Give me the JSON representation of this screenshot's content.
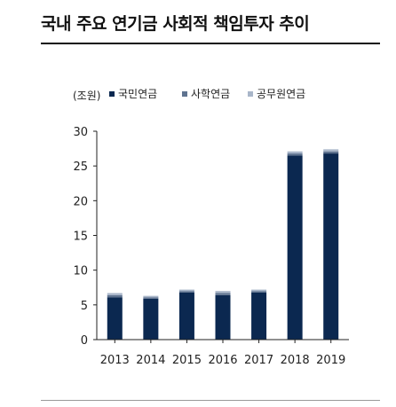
{
  "title": "국내 주요 연기금 사회적 책임투자 추이",
  "chart_data": {
    "type": "bar",
    "stacked": true,
    "unit_label": "(조원)",
    "categories": [
      "2013",
      "2014",
      "2015",
      "2016",
      "2017",
      "2018",
      "2019"
    ],
    "series": [
      {
        "name": "국민연금",
        "color": "#0b2850",
        "values": [
          6.1,
          5.9,
          6.8,
          6.4,
          6.8,
          26.5,
          26.8
        ]
      },
      {
        "name": "사학연금",
        "color": "#5f7390",
        "values": [
          0.3,
          0.2,
          0.2,
          0.3,
          0.2,
          0.3,
          0.3
        ]
      },
      {
        "name": "공무원연금",
        "color": "#a9b6c9",
        "values": [
          0.3,
          0.2,
          0.2,
          0.3,
          0.2,
          0.3,
          0.3
        ]
      }
    ],
    "ylim": [
      0,
      30
    ],
    "yticks": [
      0,
      5,
      10,
      15,
      20,
      25,
      30
    ],
    "legend_position": "top"
  }
}
